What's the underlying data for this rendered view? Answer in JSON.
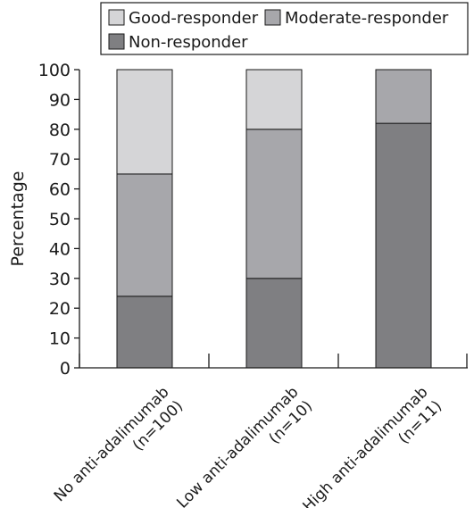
{
  "chart_data": {
    "type": "bar",
    "stacked": true,
    "categories": [
      [
        "No anti-adalimumab",
        "(n=100)"
      ],
      [
        "Low anti-adalimumab",
        "(n=10)"
      ],
      [
        "High anti-adalimumab",
        "(n=11)"
      ]
    ],
    "series": [
      {
        "name": "Non-responder",
        "color": "#7f7f82",
        "values": [
          24,
          30,
          82
        ]
      },
      {
        "name": "Moderate-responder",
        "color": "#a7a7ab",
        "values": [
          41,
          50,
          18
        ]
      },
      {
        "name": "Good-responder",
        "color": "#d5d5d7",
        "values": [
          35,
          20,
          0
        ]
      }
    ],
    "legend": {
      "placement": "top",
      "order": [
        "Good-responder",
        "Moderate-responder",
        "Non-responder"
      ]
    },
    "ylabel": "Percentage",
    "xlabel": "",
    "ylim": [
      0,
      100
    ],
    "yticks": [
      0,
      10,
      20,
      30,
      40,
      50,
      60,
      70,
      80,
      90,
      100
    ],
    "grid": false
  }
}
